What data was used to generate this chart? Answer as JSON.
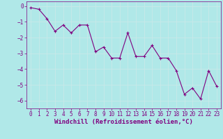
{
  "x": [
    0,
    1,
    2,
    3,
    4,
    5,
    6,
    7,
    8,
    9,
    10,
    11,
    12,
    13,
    14,
    15,
    16,
    17,
    18,
    19,
    20,
    21,
    22,
    23
  ],
  "y": [
    -0.1,
    -0.2,
    -0.8,
    -1.6,
    -1.2,
    -1.7,
    -1.2,
    -1.2,
    -2.9,
    -2.6,
    -3.3,
    -3.3,
    -1.7,
    -3.2,
    -3.2,
    -2.5,
    -3.3,
    -3.3,
    -4.1,
    -5.6,
    -5.2,
    -5.9,
    -4.1,
    -5.1
  ],
  "line_color": "#800080",
  "marker": "+",
  "marker_color": "#800080",
  "bg_color": "#b0e8e8",
  "grid_color": "#c8e8e8",
  "xlabel": "Windchill (Refroidissement éolien,°C)",
  "xlabel_color": "#800080",
  "tick_color": "#800080",
  "xlim_min": -0.5,
  "xlim_max": 23.5,
  "ylim_min": -6.5,
  "ylim_max": 0.3,
  "yticks": [
    0,
    -1,
    -2,
    -3,
    -4,
    -5,
    -6
  ],
  "xticks": [
    0,
    1,
    2,
    3,
    4,
    5,
    6,
    7,
    8,
    9,
    10,
    11,
    12,
    13,
    14,
    15,
    16,
    17,
    18,
    19,
    20,
    21,
    22,
    23
  ],
  "xlabel_fontsize": 6.5,
  "tick_fontsize": 5.5,
  "line_width": 0.8,
  "marker_size": 3.5,
  "spine_color": "#800080"
}
